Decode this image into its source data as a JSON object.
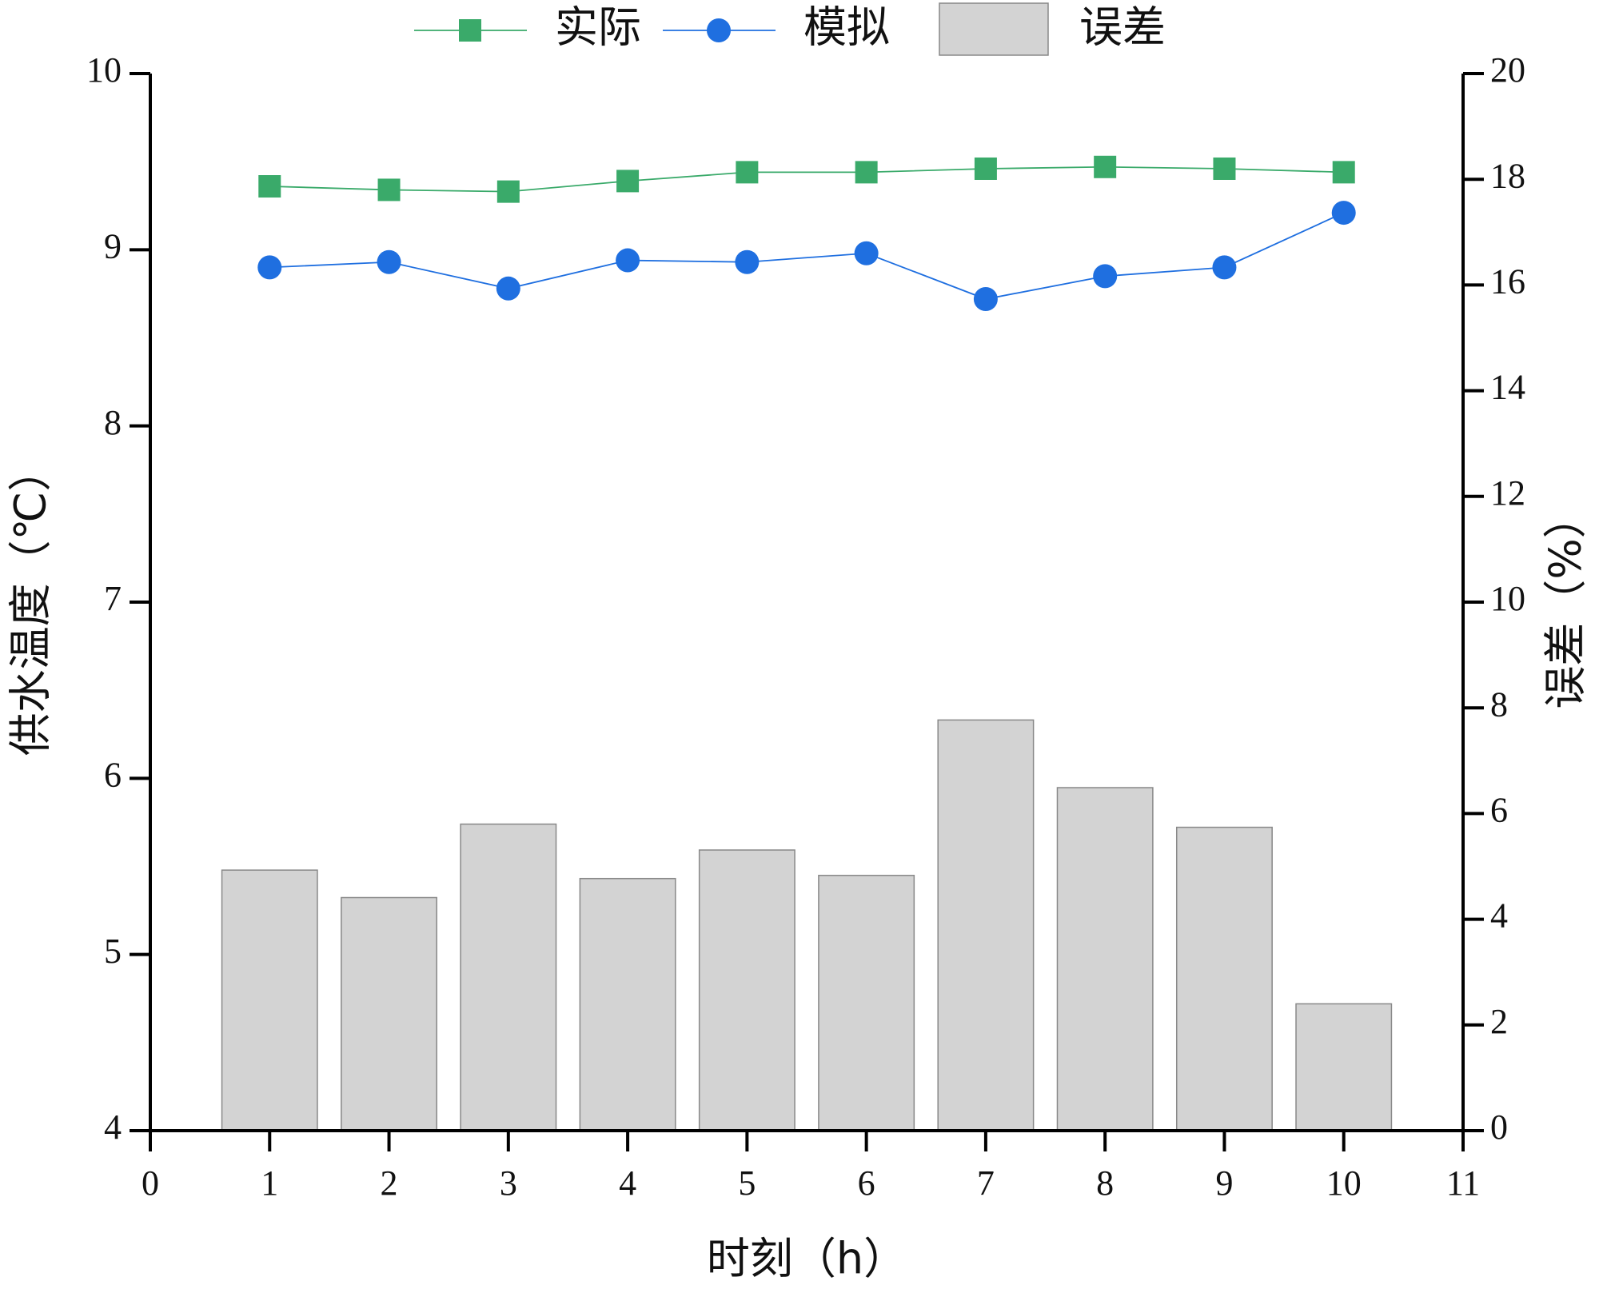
{
  "chart_data": {
    "type": "combo",
    "xlabel": "时刻（h）",
    "ylabel": "供水温度（℃）",
    "y2label": "误差（%）",
    "x": [
      1,
      2,
      3,
      4,
      5,
      6,
      7,
      8,
      9,
      10
    ],
    "xlim": [
      0,
      11
    ],
    "xticks": [
      0,
      1,
      2,
      3,
      4,
      5,
      6,
      7,
      8,
      9,
      10,
      11
    ],
    "ylim": [
      4,
      10
    ],
    "yticks": [
      4,
      5,
      6,
      7,
      8,
      9,
      10
    ],
    "y2lim": [
      0,
      20
    ],
    "y2ticks": [
      0,
      2,
      4,
      6,
      8,
      10,
      12,
      14,
      16,
      18,
      20
    ],
    "series": [
      {
        "name": "实际",
        "type": "line",
        "marker": "square",
        "color": "#3aaa6a",
        "values": [
          9.36,
          9.34,
          9.33,
          9.39,
          9.44,
          9.44,
          9.46,
          9.47,
          9.46,
          9.44
        ]
      },
      {
        "name": "模拟",
        "type": "line",
        "marker": "circle",
        "color": "#1f6fe0",
        "values": [
          8.9,
          8.93,
          8.78,
          8.94,
          8.93,
          8.98,
          8.72,
          8.85,
          8.9,
          9.21
        ]
      },
      {
        "name": "误差",
        "type": "bar",
        "axis": "y2",
        "color": "#d3d3d3",
        "values": [
          4.93,
          4.41,
          5.8,
          4.77,
          5.31,
          4.83,
          7.77,
          6.49,
          5.74,
          2.4
        ]
      }
    ]
  }
}
